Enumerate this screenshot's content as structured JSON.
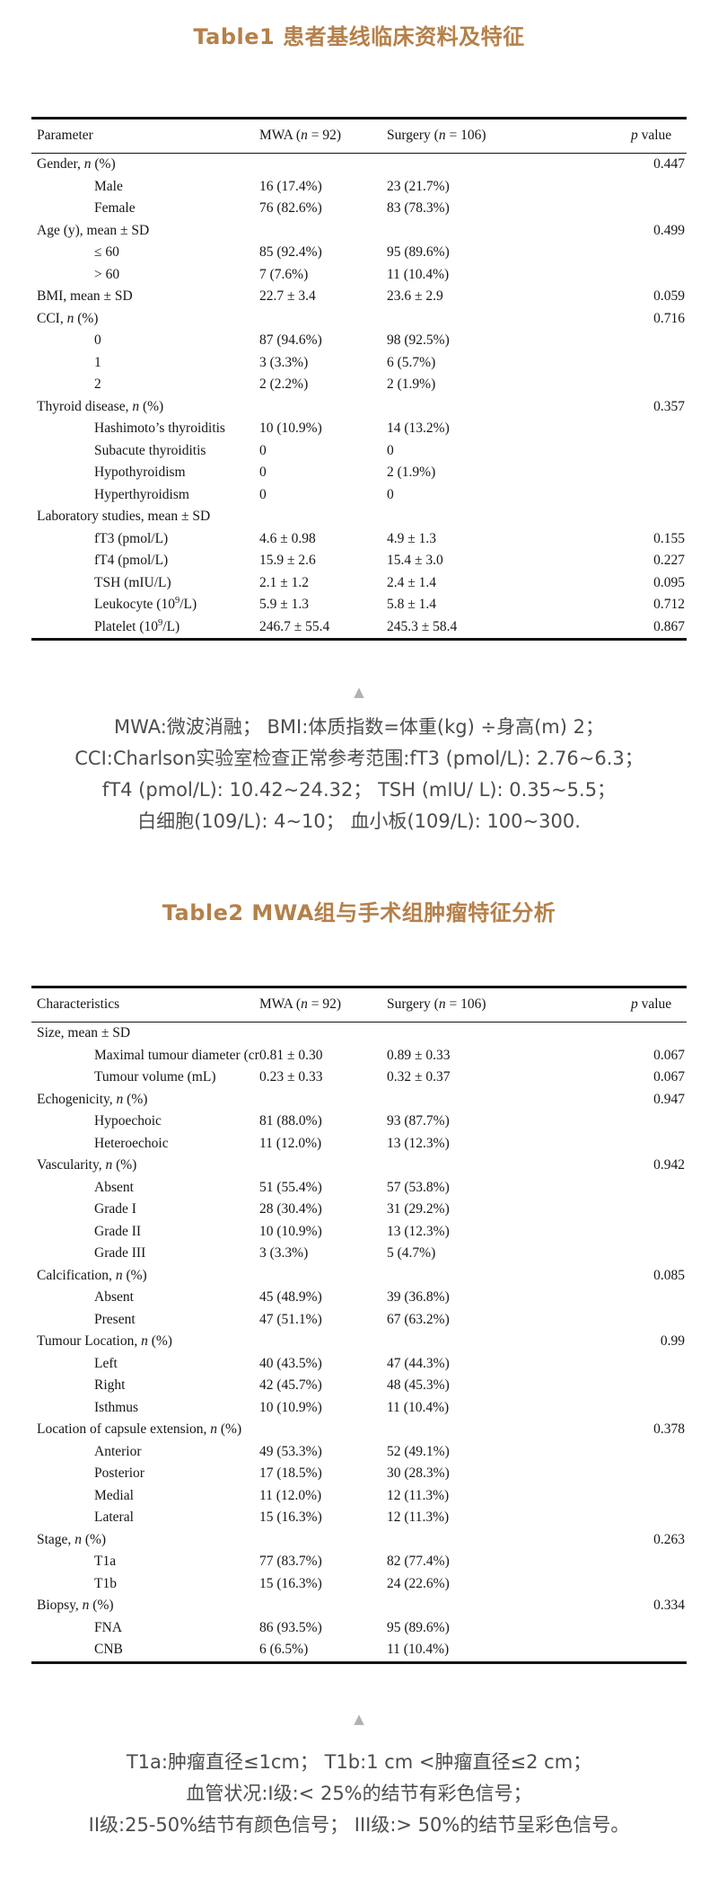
{
  "page": {
    "accent_color": "#b5804a",
    "note_text_color": "#4d4d4d",
    "triangle_icon": "▲"
  },
  "table1": {
    "title": "Table1 患者基线临床资料及特征",
    "columns": {
      "parameter": "Parameter",
      "mwa": "MWA (<i>n</i> = 92)",
      "surgery": "Surgery (<i>n</i> = 106)",
      "p": "<i>p</i> value"
    },
    "rows": [
      {
        "label": "Gender, <i>n</i> (%)",
        "indent": false,
        "mwa": "",
        "surgery": "",
        "p": "0.447"
      },
      {
        "label": "Male",
        "indent": true,
        "mwa": "16 (17.4%)",
        "surgery": "23 (21.7%)",
        "p": ""
      },
      {
        "label": "Female",
        "indent": true,
        "mwa": "76 (82.6%)",
        "surgery": "83 (78.3%)",
        "p": ""
      },
      {
        "label": "Age (y), mean ± SD",
        "indent": false,
        "mwa": "",
        "surgery": "",
        "p": "0.499"
      },
      {
        "label": "≤ 60",
        "indent": true,
        "mwa": "85 (92.4%)",
        "surgery": "95 (89.6%)",
        "p": ""
      },
      {
        "label": "&gt; 60",
        "indent": true,
        "mwa": "7 (7.6%)",
        "surgery": "11 (10.4%)",
        "p": ""
      },
      {
        "label": "BMI, mean ± SD",
        "indent": false,
        "mwa": "22.7 ± 3.4",
        "surgery": "23.6 ± 2.9",
        "p": "0.059"
      },
      {
        "label": "CCI, <i>n</i> (%)",
        "indent": false,
        "mwa": "",
        "surgery": "",
        "p": "0.716"
      },
      {
        "label": "0",
        "indent": true,
        "mwa": "87 (94.6%)",
        "surgery": "98 (92.5%)",
        "p": ""
      },
      {
        "label": "1",
        "indent": true,
        "mwa": "3 (3.3%)",
        "surgery": "6 (5.7%)",
        "p": ""
      },
      {
        "label": "2",
        "indent": true,
        "mwa": "2 (2.2%)",
        "surgery": "2 (1.9%)",
        "p": ""
      },
      {
        "label": "Thyroid disease, <i>n</i> (%)",
        "indent": false,
        "mwa": "",
        "surgery": "",
        "p": "0.357"
      },
      {
        "label": "Hashimoto’s thyroiditis",
        "indent": true,
        "mwa": "10 (10.9%)",
        "surgery": "14 (13.2%)",
        "p": ""
      },
      {
        "label": "Subacute thyroiditis",
        "indent": true,
        "mwa": "0",
        "surgery": "0",
        "p": ""
      },
      {
        "label": "Hypothyroidism",
        "indent": true,
        "mwa": "0",
        "surgery": "2 (1.9%)",
        "p": ""
      },
      {
        "label": "Hyperthyroidism",
        "indent": true,
        "mwa": "0",
        "surgery": "0",
        "p": ""
      },
      {
        "label": "Laboratory studies, mean ± SD",
        "indent": false,
        "mwa": "",
        "surgery": "",
        "p": ""
      },
      {
        "label": "fT3 (pmol/L)",
        "indent": true,
        "mwa": "4.6 ± 0.98",
        "surgery": "4.9 ± 1.3",
        "p": "0.155"
      },
      {
        "label": "fT4 (pmol/L)",
        "indent": true,
        "mwa": "15.9 ± 2.6",
        "surgery": "15.4 ± 3.0",
        "p": "0.227"
      },
      {
        "label": "TSH (mIU/L)",
        "indent": true,
        "mwa": "2.1 ± 1.2",
        "surgery": "2.4 ± 1.4",
        "p": "0.095"
      },
      {
        "label": "Leukocyte (10<sup>9</sup>/L)",
        "indent": true,
        "mwa": "5.9 ± 1.3",
        "surgery": "5.8 ± 1.4",
        "p": "0.712"
      },
      {
        "label": "Platelet (10<sup>9</sup>/L)",
        "indent": true,
        "mwa": "246.7 ± 55.4",
        "surgery": "245.3 ± 58.4",
        "p": "0.867"
      }
    ],
    "note_lines": [
      "MWA:微波消融； BMI:体质指数=体重(kg) ÷身高(m) 2；",
      "CCI:Charlson实验室检查正常参考范围:fT3 (pmol/L): 2.76~6.3；",
      "fT4 (pmol/L): 10.42~24.32； TSH (mIU/ L): 0.35~5.5；",
      "白细胞(109/L): 4~10； 血小板(109/L): 100~300."
    ]
  },
  "table2": {
    "title": "Table2 MWA组与手术组肿瘤特征分析",
    "columns": {
      "parameter": "Characteristics",
      "mwa": "MWA (<i>n</i> = 92)",
      "surgery": "Surgery (<i>n</i> = 106)",
      "p": "<i>p</i> value"
    },
    "rows": [
      {
        "label": "Size, mean ± SD",
        "indent": false,
        "mwa": "",
        "surgery": "",
        "p": ""
      },
      {
        "label": "Maximal tumour diameter (cm)",
        "indent": true,
        "mwa": "0.81 ± 0.30",
        "surgery": "0.89 ± 0.33",
        "p": "0.067"
      },
      {
        "label": "Tumour volume (mL)",
        "indent": true,
        "mwa": "0.23 ± 0.33",
        "surgery": "0.32 ± 0.37",
        "p": "0.067"
      },
      {
        "label": "Echogenicity, <i>n</i> (%)",
        "indent": false,
        "mwa": "",
        "surgery": "",
        "p": "0.947"
      },
      {
        "label": "Hypoechoic",
        "indent": true,
        "mwa": "81 (88.0%)",
        "surgery": "93 (87.7%)",
        "p": ""
      },
      {
        "label": "Heteroechoic",
        "indent": true,
        "mwa": "11 (12.0%)",
        "surgery": "13 (12.3%)",
        "p": ""
      },
      {
        "label": "Vascularity, <i>n</i> (%)",
        "indent": false,
        "mwa": "",
        "surgery": "",
        "p": "0.942"
      },
      {
        "label": "Absent",
        "indent": true,
        "mwa": "51 (55.4%)",
        "surgery": "57 (53.8%)",
        "p": ""
      },
      {
        "label": "Grade I",
        "indent": true,
        "mwa": "28 (30.4%)",
        "surgery": "31 (29.2%)",
        "p": ""
      },
      {
        "label": "Grade II",
        "indent": true,
        "mwa": "10 (10.9%)",
        "surgery": "13 (12.3%)",
        "p": ""
      },
      {
        "label": "Grade III",
        "indent": true,
        "mwa": "3 (3.3%)",
        "surgery": "5 (4.7%)",
        "p": ""
      },
      {
        "label": "Calcification, <i>n</i> (%)",
        "indent": false,
        "mwa": "",
        "surgery": "",
        "p": "0.085"
      },
      {
        "label": "Absent",
        "indent": true,
        "mwa": "45 (48.9%)",
        "surgery": "39 (36.8%)",
        "p": ""
      },
      {
        "label": "Present",
        "indent": true,
        "mwa": "47 (51.1%)",
        "surgery": "67 (63.2%)",
        "p": ""
      },
      {
        "label": "Tumour Location, <i>n</i> (%)",
        "indent": false,
        "mwa": "",
        "surgery": "",
        "p": "0.99"
      },
      {
        "label": "Left",
        "indent": true,
        "mwa": "40 (43.5%)",
        "surgery": "47 (44.3%)",
        "p": ""
      },
      {
        "label": "Right",
        "indent": true,
        "mwa": "42 (45.7%)",
        "surgery": "48 (45.3%)",
        "p": ""
      },
      {
        "label": "Isthmus",
        "indent": true,
        "mwa": "10 (10.9%)",
        "surgery": "11 (10.4%)",
        "p": ""
      },
      {
        "label": "Location of capsule extension, <i>n</i> (%)",
        "indent": false,
        "mwa": "",
        "surgery": "",
        "p": "0.378"
      },
      {
        "label": "Anterior",
        "indent": true,
        "mwa": "49 (53.3%)",
        "surgery": "52 (49.1%)",
        "p": ""
      },
      {
        "label": "Posterior",
        "indent": true,
        "mwa": "17 (18.5%)",
        "surgery": "30 (28.3%)",
        "p": ""
      },
      {
        "label": "Medial",
        "indent": true,
        "mwa": "11 (12.0%)",
        "surgery": "12 (11.3%)",
        "p": ""
      },
      {
        "label": "Lateral",
        "indent": true,
        "mwa": "15 (16.3%)",
        "surgery": "12 (11.3%)",
        "p": ""
      },
      {
        "label": "Stage, <i>n</i> (%)",
        "indent": false,
        "mwa": "",
        "surgery": "",
        "p": "0.263"
      },
      {
        "label": "T1a",
        "indent": true,
        "mwa": "77 (83.7%)",
        "surgery": "82 (77.4%)",
        "p": ""
      },
      {
        "label": "T1b",
        "indent": true,
        "mwa": "15 (16.3%)",
        "surgery": "24 (22.6%)",
        "p": ""
      },
      {
        "label": "Biopsy, <i>n</i> (%)",
        "indent": false,
        "mwa": "",
        "surgery": "",
        "p": "0.334"
      },
      {
        "label": "FNA",
        "indent": true,
        "mwa": "86 (93.5%)",
        "surgery": "95 (89.6%)",
        "p": ""
      },
      {
        "label": "CNB",
        "indent": true,
        "mwa": "6 (6.5%)",
        "surgery": "11 (10.4%)",
        "p": ""
      }
    ],
    "note_lines": [
      "T1a:肿瘤直径≤1cm； T1b:1 cm <肿瘤直径≤2 cm；",
      "血管状况:I级:< 25%的结节有彩色信号；",
      "II级:25-50%结节有颜色信号； III级:> 50%的结节呈彩色信号。"
    ]
  }
}
